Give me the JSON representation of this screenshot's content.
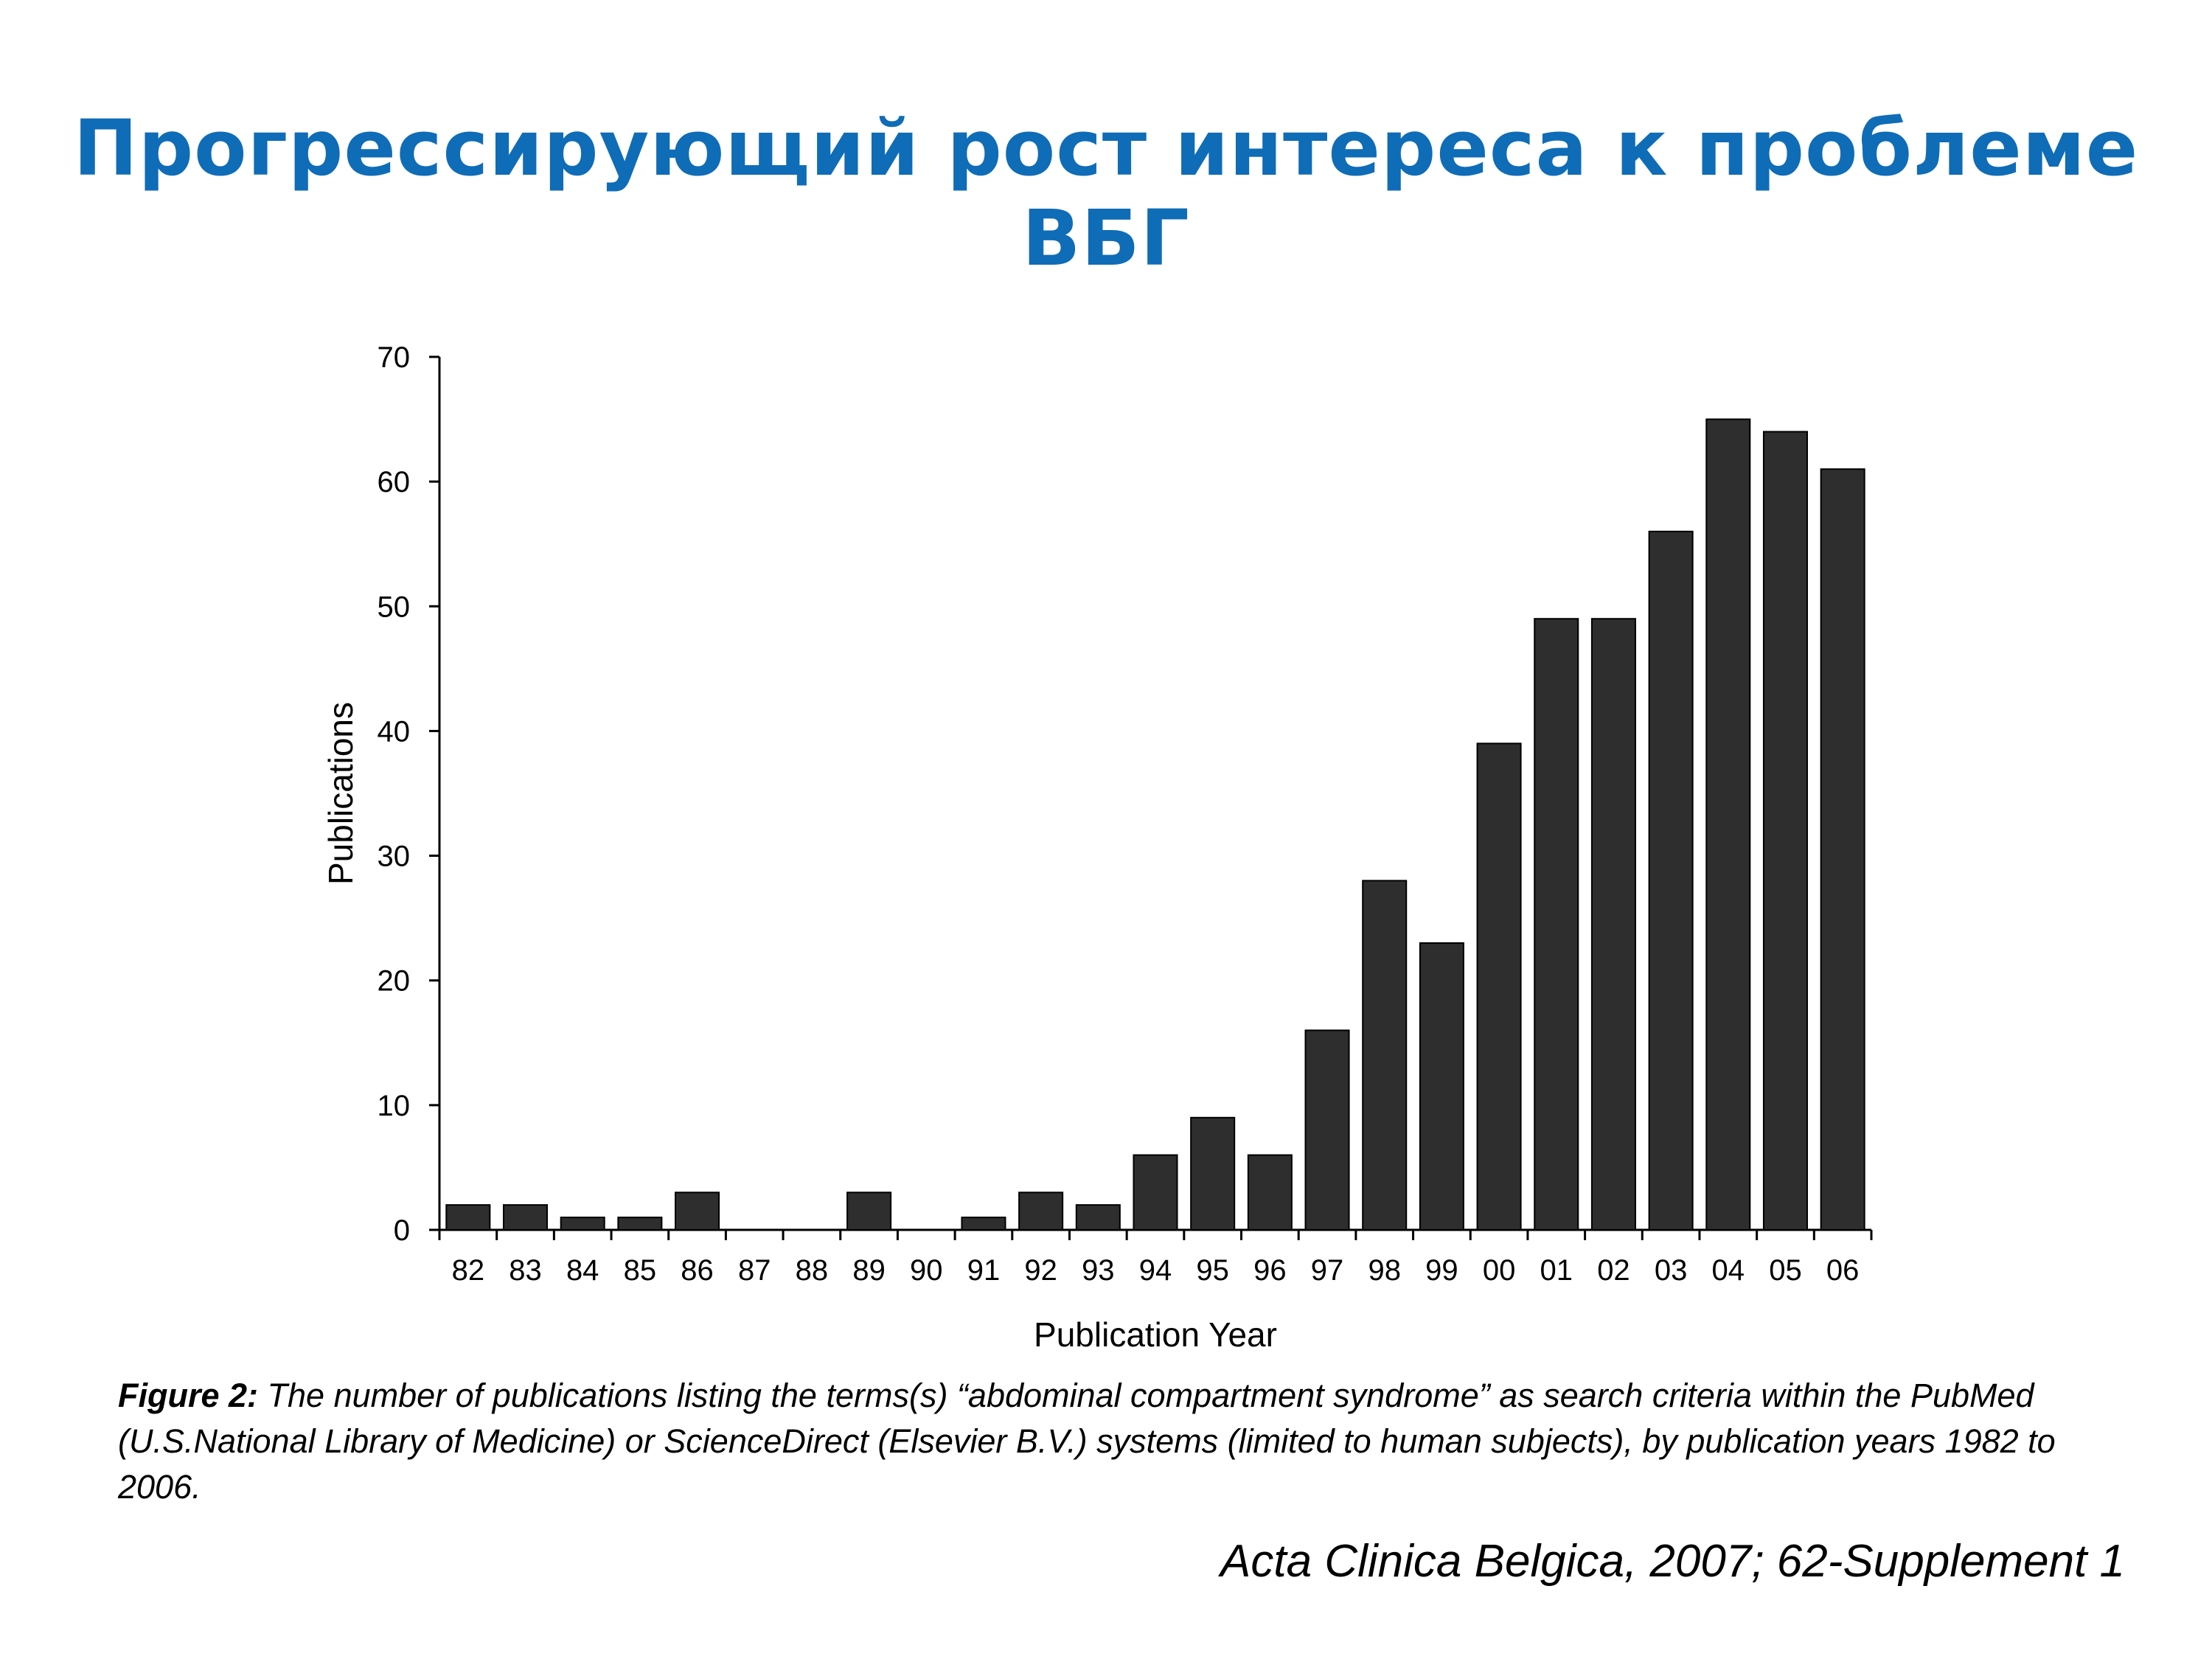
{
  "slide": {
    "title": "Прогрессирующий рост интереса к проблеме ВБГ",
    "title_color": "#0f6cb7"
  },
  "caption": {
    "label": "Figure 2:",
    "text": " The number of publications listing the terms(s) “abdominal compartment syndrome” as search criteria within the PubMed (U.S.National Library of Medicine) or ScienceDirect (Elsevier B.V.) systems (limited to human subjects), by publication years 1982 to 2006."
  },
  "citation": "Acta Clinica Belgica, 2007; 62-Supplement 1",
  "chart_data": {
    "type": "bar",
    "categories": [
      "82",
      "83",
      "84",
      "85",
      "86",
      "87",
      "88",
      "89",
      "90",
      "91",
      "92",
      "93",
      "94",
      "95",
      "96",
      "97",
      "98",
      "99",
      "00",
      "01",
      "02",
      "03",
      "04",
      "05",
      "06"
    ],
    "values": [
      2,
      2,
      1,
      1,
      3,
      0,
      0,
      3,
      0,
      1,
      3,
      2,
      6,
      9,
      6,
      16,
      28,
      23,
      39,
      49,
      49,
      56,
      65,
      64,
      61
    ],
    "xlabel": "Publication Year",
    "ylabel": "Publications",
    "ylim": [
      0,
      70
    ],
    "yticks": [
      0,
      10,
      20,
      30,
      40,
      50,
      60,
      70
    ],
    "bar_color": "#2e2e2e",
    "grid": false
  }
}
